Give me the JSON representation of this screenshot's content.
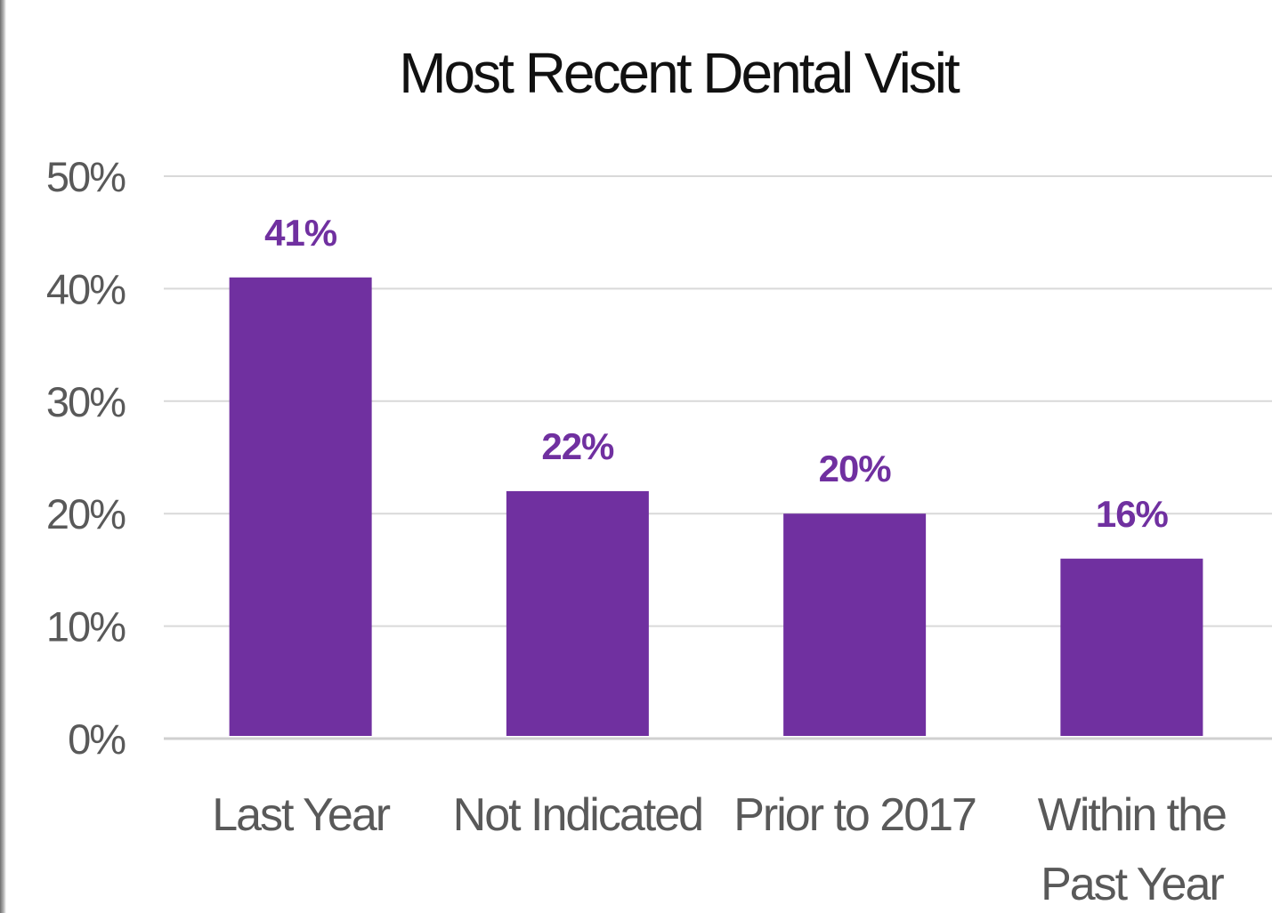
{
  "chart_data": {
    "type": "bar",
    "title": "Most Recent Dental Visit",
    "xlabel": "",
    "ylabel": "",
    "categories": [
      [
        "Last Year"
      ],
      [
        "Not Indicated"
      ],
      [
        "Prior to 2017"
      ],
      [
        "Within the",
        "Past Year"
      ]
    ],
    "values": [
      41,
      22,
      20,
      16
    ],
    "data_labels": [
      "41%",
      "22%",
      "20%",
      "16%"
    ],
    "ylim": [
      0,
      50
    ],
    "yticks": [
      0,
      10,
      20,
      30,
      40,
      50
    ],
    "ytick_labels": [
      "0%",
      "10%",
      "20%",
      "30%",
      "40%",
      "50%"
    ],
    "grid": true,
    "legend": "none",
    "colors": {
      "bar": "#7030A0",
      "data_label": "#7030A0",
      "grid": "#d9d9d9",
      "tick_text": "#595959",
      "title_text": "#111111"
    }
  }
}
